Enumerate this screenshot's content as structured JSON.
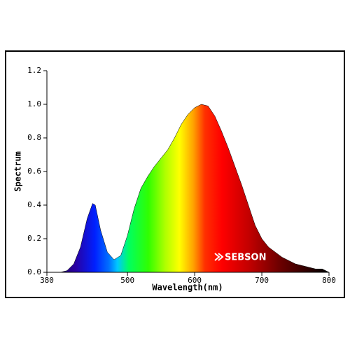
{
  "chart_data": {
    "type": "area",
    "x": [
      380,
      400,
      410,
      420,
      430,
      440,
      448,
      452,
      460,
      470,
      480,
      490,
      500,
      510,
      520,
      530,
      540,
      550,
      560,
      570,
      580,
      590,
      600,
      610,
      620,
      630,
      640,
      650,
      660,
      670,
      680,
      690,
      700,
      710,
      720,
      730,
      740,
      750,
      760,
      770,
      780,
      790,
      800
    ],
    "values": [
      0,
      0,
      0.01,
      0.05,
      0.15,
      0.32,
      0.41,
      0.4,
      0.25,
      0.12,
      0.075,
      0.1,
      0.22,
      0.38,
      0.5,
      0.57,
      0.63,
      0.68,
      0.73,
      0.8,
      0.88,
      0.94,
      0.98,
      1.0,
      0.99,
      0.93,
      0.84,
      0.74,
      0.63,
      0.52,
      0.4,
      0.28,
      0.2,
      0.15,
      0.12,
      0.09,
      0.07,
      0.05,
      0.04,
      0.03,
      0.02,
      0.02,
      0
    ],
    "xlim": [
      380,
      800
    ],
    "xticks": [
      380,
      500,
      600,
      700,
      800
    ],
    "ylim": [
      0,
      1.2
    ],
    "yticks": [
      {
        "value": 0,
        "label": "0.0"
      },
      0.2,
      0.4,
      0.6,
      0.8,
      {
        "value": 1,
        "label": "1.0"
      },
      1.2
    ],
    "xlabel": "Wavelength(nm)",
    "ylabel": "Spectrum",
    "logo": "SEBSON"
  }
}
